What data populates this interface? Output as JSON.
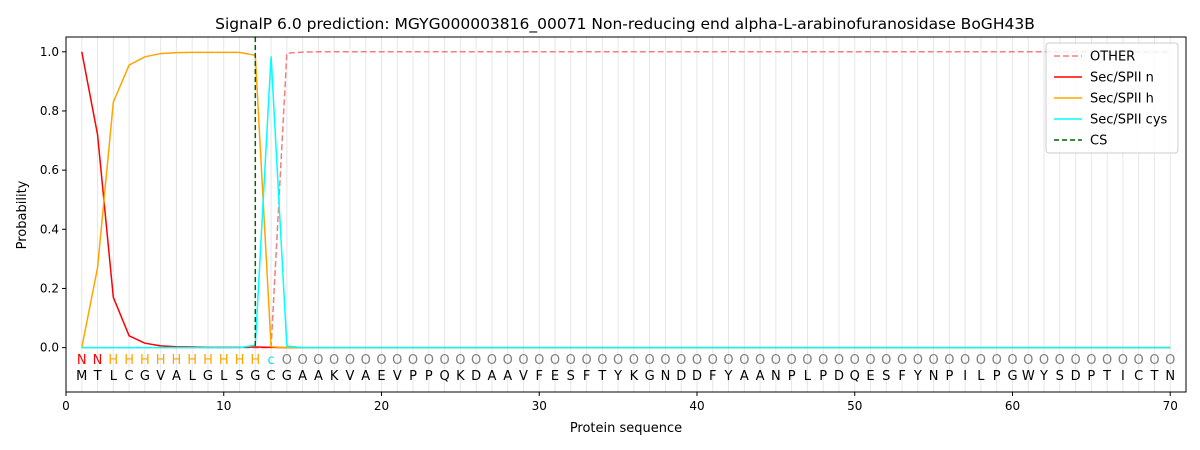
{
  "chart_data": {
    "type": "line",
    "title": "SignalP 6.0 prediction: MGYG000003816_00071 Non-reducing end alpha-L-arabinofuranosidase BoGH43B",
    "xlabel": "Protein sequence",
    "ylabel": "Probability",
    "xlim": [
      0,
      71
    ],
    "ylim": [
      -0.15,
      1.05
    ],
    "x_ticks": [
      0,
      10,
      20,
      30,
      40,
      50,
      60,
      70
    ],
    "y_ticks": [
      0.0,
      0.2,
      0.4,
      0.6,
      0.8,
      1.0
    ],
    "x_tick_labels": [
      "0",
      "10",
      "20",
      "30",
      "40",
      "50",
      "60",
      "70"
    ],
    "y_tick_labels": [
      "0.0",
      "0.2",
      "0.4",
      "0.6",
      "0.8",
      "1.0"
    ],
    "grid": "vertical lines at each residue",
    "legend_position": "top-right",
    "sequence": [
      "M",
      "T",
      "L",
      "C",
      "G",
      "V",
      "A",
      "L",
      "G",
      "L",
      "S",
      "G",
      "C",
      "G",
      "A",
      "A",
      "K",
      "V",
      "A",
      "E",
      "V",
      "P",
      "P",
      "Q",
      "K",
      "D",
      "A",
      "A",
      "V",
      "F",
      "E",
      "S",
      "F",
      "T",
      "Y",
      "K",
      "G",
      "N",
      "D",
      "D",
      "F",
      "Y",
      "A",
      "A",
      "N",
      "P",
      "L",
      "P",
      "D",
      "Q",
      "E",
      "S",
      "F",
      "Y",
      "N",
      "P",
      "I",
      "L",
      "P",
      "G",
      "W",
      "Y",
      "S",
      "D",
      "P",
      "T",
      "I",
      "C",
      "T",
      "N"
    ],
    "annotation": [
      "N",
      "N",
      "H",
      "H",
      "H",
      "H",
      "H",
      "H",
      "H",
      "H",
      "H",
      "H",
      "c",
      "O",
      "O",
      "O",
      "O",
      "O",
      "O",
      "O",
      "O",
      "O",
      "O",
      "O",
      "O",
      "O",
      "O",
      "O",
      "O",
      "O",
      "O",
      "O",
      "O",
      "O",
      "O",
      "O",
      "O",
      "O",
      "O",
      "O",
      "O",
      "O",
      "O",
      "O",
      "O",
      "O",
      "O",
      "O",
      "O",
      "O",
      "O",
      "O",
      "O",
      "O",
      "O",
      "O",
      "O",
      "O",
      "O",
      "O",
      "O",
      "O",
      "O",
      "O",
      "O",
      "O",
      "O",
      "O",
      "O",
      "O"
    ],
    "annotation_colors": {
      "N": "#ff0000",
      "H": "#ffa500",
      "c": "#00e5ee",
      "O": "#808080"
    },
    "cs_position": 12,
    "series": [
      {
        "name": "OTHER",
        "color": "#f08080",
        "dash": "6,3",
        "values": [
          0,
          0,
          0,
          0,
          0,
          0,
          0,
          0,
          0,
          0,
          0,
          0,
          0.0,
          0.995,
          0.999,
          1,
          1,
          1,
          1,
          1,
          1,
          1,
          1,
          1,
          1,
          1,
          1,
          1,
          1,
          1,
          1,
          1,
          1,
          1,
          1,
          1,
          1,
          1,
          1,
          1,
          1,
          1,
          1,
          1,
          1,
          1,
          1,
          1,
          1,
          1,
          1,
          1,
          1,
          1,
          1,
          1,
          1,
          1,
          1,
          1,
          1,
          1,
          1,
          1,
          1,
          1,
          1,
          1,
          1,
          1
        ]
      },
      {
        "name": "Sec/SPII n",
        "color": "#ff0000",
        "dash": "",
        "values": [
          1.0,
          0.72,
          0.17,
          0.04,
          0.015,
          0.006,
          0.003,
          0.002,
          0.001,
          0.001,
          0.001,
          0.002,
          0.001,
          0,
          0,
          0,
          0,
          0,
          0,
          0,
          0,
          0,
          0,
          0,
          0,
          0,
          0,
          0,
          0,
          0,
          0,
          0,
          0,
          0,
          0,
          0,
          0,
          0,
          0,
          0,
          0,
          0,
          0,
          0,
          0,
          0,
          0,
          0,
          0,
          0,
          0,
          0,
          0,
          0,
          0,
          0,
          0,
          0,
          0,
          0,
          0,
          0,
          0,
          0,
          0,
          0,
          0,
          0,
          0,
          0
        ]
      },
      {
        "name": "Sec/SPII h",
        "color": "#ffa500",
        "dash": "",
        "values": [
          0.0,
          0.27,
          0.83,
          0.955,
          0.983,
          0.994,
          0.997,
          0.998,
          0.998,
          0.998,
          0.998,
          0.988,
          0.003,
          0,
          0,
          0,
          0,
          0,
          0,
          0,
          0,
          0,
          0,
          0,
          0,
          0,
          0,
          0,
          0,
          0,
          0,
          0,
          0,
          0,
          0,
          0,
          0,
          0,
          0,
          0,
          0,
          0,
          0,
          0,
          0,
          0,
          0,
          0,
          0,
          0,
          0,
          0,
          0,
          0,
          0,
          0,
          0,
          0,
          0,
          0,
          0,
          0,
          0,
          0,
          0,
          0,
          0,
          0,
          0,
          0
        ]
      },
      {
        "name": "Sec/SPII cys",
        "color": "#00ffff",
        "dash": "",
        "values": [
          0,
          0,
          0,
          0,
          0,
          0,
          0,
          0,
          0,
          0,
          0,
          0.008,
          0.985,
          0.005,
          0,
          0,
          0,
          0,
          0,
          0,
          0,
          0,
          0,
          0,
          0,
          0,
          0,
          0,
          0,
          0,
          0,
          0,
          0,
          0,
          0,
          0,
          0,
          0,
          0,
          0,
          0,
          0,
          0,
          0,
          0,
          0,
          0,
          0,
          0,
          0,
          0,
          0,
          0,
          0,
          0,
          0,
          0,
          0,
          0,
          0,
          0,
          0,
          0,
          0,
          0,
          0,
          0,
          0,
          0,
          0
        ]
      }
    ],
    "legend": [
      {
        "label": "OTHER",
        "color": "#f08080",
        "dash": "6,3"
      },
      {
        "label": "Sec/SPII n",
        "color": "#ff0000",
        "dash": ""
      },
      {
        "label": "Sec/SPII h",
        "color": "#ffa500",
        "dash": ""
      },
      {
        "label": "Sec/SPII cys",
        "color": "#00ffff",
        "dash": ""
      },
      {
        "label": "CS",
        "color": "#006400",
        "dash": "5,3"
      }
    ]
  }
}
